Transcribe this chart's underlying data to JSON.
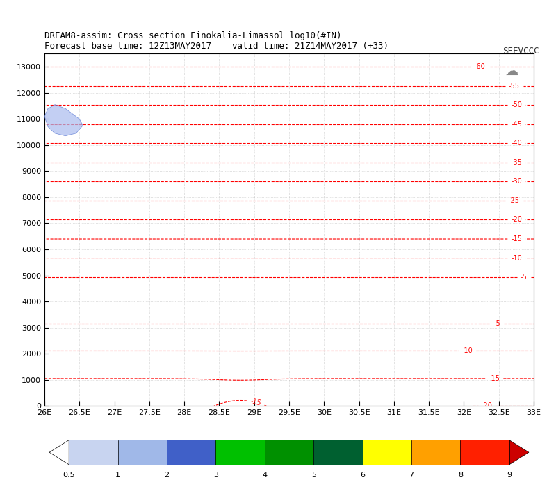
{
  "title_line1": "DREAM8-assim: Cross section Finokalia-Limassol log10(#IN)",
  "title_line2": "Forecast base time: 12Z13MAY2017    valid time: 21Z14MAY2017 (+33)",
  "logo_text": "SEEVCCC",
  "xmin": 26.0,
  "xmax": 33.0,
  "ymin": 0,
  "ymax": 13500,
  "xticks": [
    26,
    26.5,
    27,
    27.5,
    28,
    28.5,
    29,
    29.5,
    30,
    30.5,
    31,
    31.5,
    32,
    32.5,
    33
  ],
  "xtick_labels": [
    "26E",
    "26.5E",
    "27E",
    "27.5E",
    "28E",
    "28.5E",
    "29E",
    "29.5E",
    "30E",
    "30.5E",
    "31E",
    "31.5E",
    "32E",
    "32.5E",
    "33E"
  ],
  "yticks": [
    0,
    1000,
    2000,
    3000,
    4000,
    5000,
    6000,
    7000,
    8000,
    9000,
    10000,
    11000,
    12000,
    13000
  ],
  "grid_color": "#aaaaaa",
  "contour_color": "#ff0000",
  "contour_linestyle": "--",
  "background_color": "#ffffff",
  "plot_bg_color": "#ffffff",
  "colorbar_colors": [
    "#d0d8f0",
    "#a0b4e8",
    "#6080d0",
    "#4060c8",
    "#00b050",
    "#008000",
    "#006000",
    "#ffff00",
    "#ffa500",
    "#ff4500",
    "#cc0000"
  ],
  "colorbar_values": [
    0.5,
    1,
    2,
    3,
    4,
    5,
    6,
    7,
    8,
    9
  ],
  "fig_width": 8.0,
  "fig_height": 7.04,
  "dpi": 100
}
